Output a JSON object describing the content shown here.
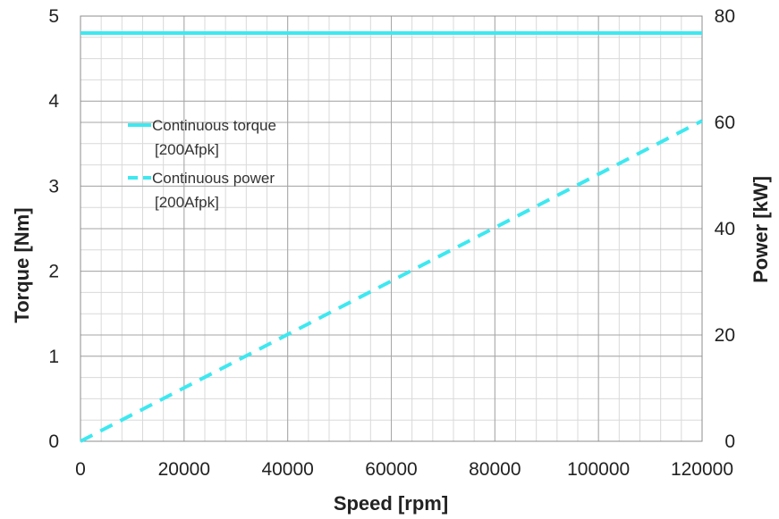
{
  "chart_data": {
    "type": "line",
    "xlabel": "Speed [rpm]",
    "ylabel_left": "Torque [Nm]",
    "ylabel_right": "Power [kW]",
    "xlim": [
      0,
      120000
    ],
    "ylim_left": [
      0,
      5
    ],
    "ylim_right": [
      0,
      80
    ],
    "x_ticks": [
      "0",
      "20000",
      "40000",
      "60000",
      "80000",
      "100000",
      "120000"
    ],
    "y_left_ticks": [
      "0",
      "1",
      "2",
      "3",
      "4",
      "5"
    ],
    "y_right_ticks": [
      "0",
      "20",
      "40",
      "60",
      "80"
    ],
    "grid": true,
    "legend_position": "upper-left",
    "series": [
      {
        "name": "Continuous torque [200Afpk]",
        "legend_lines": [
          "Continuous torque",
          "[200Afpk]"
        ],
        "axis": "left",
        "style": "solid",
        "color": "#3ee8f0",
        "x": [
          0,
          120000
        ],
        "y": [
          4.8,
          4.8
        ]
      },
      {
        "name": "Continuous power [200Afpk]",
        "legend_lines": [
          "Continuous power",
          "[200Afpk]"
        ],
        "axis": "right",
        "style": "dashed",
        "color": "#3ee8f0",
        "x": [
          0,
          120000
        ],
        "y": [
          0,
          60.3
        ]
      }
    ]
  }
}
